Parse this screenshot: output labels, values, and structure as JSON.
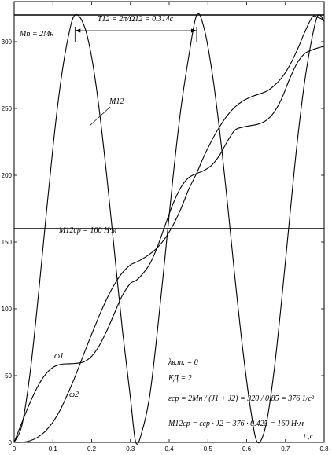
{
  "chart_data": {
    "type": "line",
    "title": "",
    "xlabel": "t ,c",
    "ylabel": "",
    "xlim": [
      0,
      0.8
    ],
    "ylim": [
      0,
      330
    ],
    "grid": false,
    "legend": "none",
    "x_ticks": [
      "0",
      "0.1",
      "0.2",
      "0.3",
      "0.4",
      "0.5",
      "0.6",
      "0.7",
      "0.8"
    ],
    "y_ticks": [
      "0",
      "50",
      "100",
      "150",
      "200",
      "250",
      "300"
    ],
    "hlines": [
      {
        "name": "Mп = 2Mн",
        "y": 320
      },
      {
        "name": "M12ср = 160 Н·м",
        "y": 160
      }
    ],
    "series": [
      {
        "name": "M12",
        "x": [
          0,
          0.02,
          0.04,
          0.06,
          0.08,
          0.1,
          0.12,
          0.14,
          0.157,
          0.18,
          0.2,
          0.22,
          0.24,
          0.26,
          0.28,
          0.3,
          0.314,
          0.33,
          0.35,
          0.37,
          0.39,
          0.41,
          0.43,
          0.45,
          0.471,
          0.49,
          0.51,
          0.53,
          0.55,
          0.57,
          0.59,
          0.61,
          0.628,
          0.65,
          0.67,
          0.69,
          0.71,
          0.73,
          0.75,
          0.77,
          0.785,
          0.8
        ],
        "y": [
          0,
          12.8,
          49.4,
          102.5,
          162.5,
          220.6,
          269.5,
          304.2,
          320,
          312.5,
          288.4,
          248.3,
          196.5,
          139.0,
          82.5,
          33.8,
          0,
          8.2,
          35.3,
          84.0,
          140.9,
          198.4,
          249.3,
          287.8,
          320,
          310.3,
          278.6,
          234.2,
          180.3,
          122.8,
          69.4,
          25.3,
          0,
          13.1,
          51.8,
          105.4,
          165.4,
          223.1,
          270.8,
          304.6,
          320,
          315.0
        ]
      },
      {
        "name": "ω1",
        "x": [
          0,
          0.02,
          0.04,
          0.06,
          0.08,
          0.1,
          0.12,
          0.14,
          0.157,
          0.18,
          0.2,
          0.22,
          0.24,
          0.26,
          0.28,
          0.3,
          0.314,
          0.33,
          0.35,
          0.37,
          0.39,
          0.41,
          0.43,
          0.45,
          0.471,
          0.49,
          0.51,
          0.53,
          0.55,
          0.57,
          0.59,
          0.61,
          0.628,
          0.65,
          0.67,
          0.69,
          0.71,
          0.73,
          0.75,
          0.77,
          0.785,
          0.8
        ],
        "y": [
          0,
          14.9,
          29.1,
          41.4,
          50.6,
          56.1,
          58.4,
          58.9,
          59.1,
          60.3,
          64.5,
          72.6,
          84.1,
          97.6,
          110.4,
          119.0,
          121.1,
          125.6,
          133.6,
          146.6,
          162.9,
          178.6,
          190.8,
          198.1,
          201.3,
          203.6,
          207.6,
          214.9,
          225.3,
          233.8,
          236.0,
          237.2,
          238.1,
          241.0,
          246.9,
          257.1,
          271.5,
          283.8,
          291.1,
          294.0,
          295.4,
          296.5
        ]
      },
      {
        "name": "ω2",
        "x": [
          0,
          0.02,
          0.04,
          0.06,
          0.08,
          0.1,
          0.12,
          0.14,
          0.157,
          0.18,
          0.2,
          0.22,
          0.24,
          0.26,
          0.28,
          0.3,
          0.314,
          0.33,
          0.35,
          0.37,
          0.39,
          0.41,
          0.43,
          0.45,
          0.471,
          0.49,
          0.51,
          0.53,
          0.55,
          0.57,
          0.59,
          0.61,
          0.628,
          0.65,
          0.67,
          0.69,
          0.71,
          0.73,
          0.75,
          0.77,
          0.785,
          0.8
        ],
        "y": [
          0,
          0.1,
          1.1,
          3.7,
          8.2,
          15.2,
          24.9,
          37.6,
          49.0,
          66.3,
          81.0,
          95.1,
          108.0,
          118.9,
          127.3,
          132.8,
          134.8,
          137.2,
          141.0,
          145.9,
          153.0,
          162.6,
          174.7,
          189.1,
          201.6,
          214.3,
          226.1,
          236.2,
          244.7,
          251.1,
          255.6,
          258.5,
          260.4,
          262.7,
          266.8,
          272.8,
          281.7,
          293.4,
          307.2,
          318.6,
          318.0,
          316.0
        ]
      }
    ],
    "annotations": {
      "period": "T12 = 2π/Ω12 = 0.314c",
      "mp": "Mп = 2Mн",
      "m12_label": "M12",
      "mavg": "M12ср = 160 Н·м",
      "w1_label": "ω1",
      "w2_label": "ω2",
      "lambda": "λв.т. = 0",
      "kd": "KД = 2",
      "eps": "εср = 2Mн / (J1 + J2) = 320 / 0.85 = 376 1/c²",
      "m12eq": "M12ср = εср · J2 = 376 · 0.425 = 160 Н·м"
    }
  }
}
